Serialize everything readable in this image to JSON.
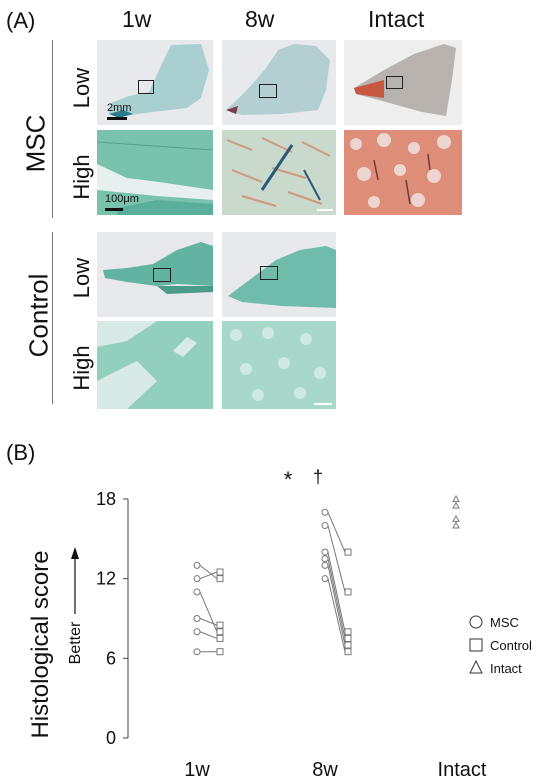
{
  "panel_a": {
    "label": "(A)",
    "columns": [
      "1w",
      "8w",
      "Intact"
    ],
    "groups": [
      "MSC",
      "Control"
    ],
    "magnifications": [
      "Low",
      "High"
    ],
    "scale_low": "2mm",
    "scale_high": "100μm"
  },
  "panel_b": {
    "label": "(B)"
  },
  "colors": {
    "msc_stain": "#6fb8a6",
    "intact_stain": "#c8573f",
    "marker": "#777777"
  },
  "chart_data": {
    "type": "scatter",
    "ylabel": "Histological score",
    "direction_label": "Better",
    "ylim": [
      0,
      18
    ],
    "yticks": [
      0,
      6,
      12,
      18
    ],
    "categories": [
      "1w",
      "8w",
      "Intact"
    ],
    "annotations": [
      "*",
      "†"
    ],
    "legend": [
      "MSC",
      "Control",
      "Intact"
    ],
    "legend_position": "right",
    "paired": [
      {
        "category": "1w",
        "pairs": [
          [
            13.0,
            12.0
          ],
          [
            12.0,
            12.5
          ],
          [
            11.0,
            8.0
          ],
          [
            9.0,
            8.5
          ],
          [
            8.0,
            7.5
          ],
          [
            6.5,
            6.5
          ]
        ]
      },
      {
        "category": "8w",
        "pairs": [
          [
            17.0,
            14.0
          ],
          [
            16.0,
            11.0
          ],
          [
            14.0,
            8.0
          ],
          [
            13.5,
            7.5
          ],
          [
            13.0,
            7.0
          ],
          [
            12.0,
            6.5
          ]
        ]
      }
    ],
    "intact_values": [
      18.0,
      17.5,
      16.5,
      16.0
    ]
  }
}
